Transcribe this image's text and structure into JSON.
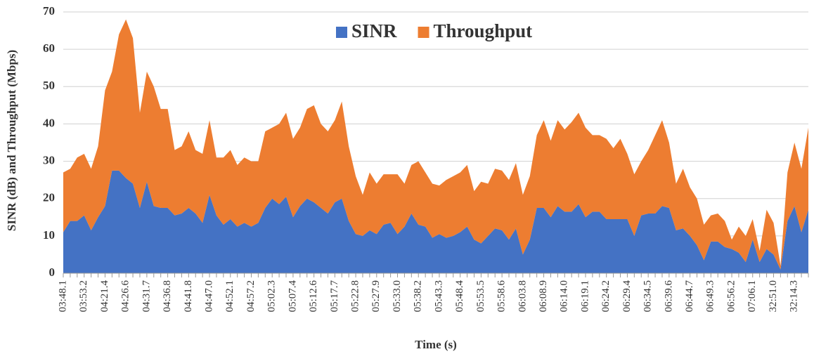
{
  "chart_data": {
    "type": "stacked_area",
    "xlabel": "Time (s)",
    "ylabel": "SINR (dB) and Throughput (Mbps)",
    "categories": [
      "03:48.1",
      null,
      null,
      "03:53.2",
      null,
      null,
      "04:21.4",
      null,
      null,
      "04:26.6",
      null,
      null,
      "04:31.7",
      null,
      null,
      "04:36.8",
      null,
      null,
      "04:41.8",
      null,
      null,
      "04:47.0",
      null,
      null,
      "04:52.1",
      null,
      null,
      "04:57.2",
      null,
      null,
      "05:02.3",
      null,
      null,
      "05:07.4",
      null,
      null,
      "05:12.6",
      null,
      null,
      "05:17.7",
      null,
      null,
      "05:22.8",
      null,
      null,
      "05:27.9",
      null,
      null,
      "05:33.0",
      null,
      null,
      "05:38.2",
      null,
      null,
      "05:43.3",
      null,
      null,
      "05:48.4",
      null,
      null,
      "05:53.5",
      null,
      null,
      "05:58.6",
      null,
      null,
      "06:03.8",
      null,
      null,
      "06:08.9",
      null,
      null,
      "06:14.0",
      null,
      null,
      "06:19.1",
      null,
      null,
      "06:24.2",
      null,
      null,
      "06:29.4",
      null,
      null,
      "06:34.5",
      null,
      null,
      "06:39.6",
      null,
      null,
      "06:44.7",
      null,
      null,
      "06:49.3",
      null,
      null,
      "06:56.2",
      null,
      null,
      "07:06.1",
      null,
      null,
      "32:51.0",
      null,
      null,
      "32:14.3",
      null,
      null
    ],
    "series": [
      {
        "name": "SINR",
        "color": "#4472c4",
        "values": [
          11,
          14,
          14,
          15.5,
          11.5,
          15,
          18,
          27.5,
          27.5,
          25.5,
          24,
          17.5,
          24.5,
          18,
          17.5,
          17.5,
          15.5,
          16,
          17.5,
          16,
          13.5,
          21,
          15.5,
          13,
          14.5,
          12.5,
          13.5,
          12.5,
          13.5,
          17.5,
          20,
          18.5,
          20.5,
          15,
          18,
          20,
          19,
          17.5,
          16,
          19,
          20,
          14,
          10.5,
          10,
          11.5,
          10.5,
          13,
          13.5,
          10.5,
          12.5,
          16,
          13,
          12.5,
          9.5,
          10.5,
          9.5,
          10,
          11,
          12.5,
          9,
          8,
          10,
          12,
          11.5,
          9,
          12,
          5,
          9,
          17.5,
          17.5,
          15,
          18,
          16.5,
          16.5,
          18.5,
          15,
          16.5,
          16.5,
          14.5,
          14.5,
          14.5,
          14.5,
          10,
          15.5,
          16,
          16,
          18,
          17.5,
          11.5,
          12,
          10,
          7.5,
          3.5,
          8.5,
          8.5,
          7,
          6.5,
          5.5,
          3,
          9,
          3,
          6.5,
          5,
          1,
          14,
          18,
          11,
          17
        ]
      },
      {
        "name": "Throughput",
        "color": "#ed7d31",
        "values": [
          16,
          14,
          17,
          16.5,
          16.5,
          19,
          31,
          26.5,
          36.5,
          42.5,
          39,
          25.5,
          29.5,
          32,
          26.5,
          26.5,
          17.5,
          18,
          20.5,
          17,
          18.5,
          20,
          15.5,
          18,
          18.5,
          16.5,
          17.5,
          17.5,
          16.5,
          20.5,
          19,
          21.5,
          22.5,
          21,
          21,
          24,
          26,
          22.5,
          22,
          22,
          26,
          20,
          15.5,
          11,
          15.5,
          13.5,
          13.5,
          13,
          16,
          11.5,
          13,
          17,
          14.5,
          14.5,
          13,
          15.5,
          16,
          16,
          16.5,
          13,
          16.5,
          14,
          16,
          16,
          16,
          17.5,
          16,
          17,
          19.5,
          23.5,
          20.5,
          23,
          22,
          24,
          24.5,
          24,
          20.5,
          20.5,
          21.5,
          19,
          21.5,
          17.5,
          16.5,
          14.5,
          17,
          21,
          23,
          17.5,
          12.5,
          16,
          13,
          12.5,
          9.5,
          7,
          7.5,
          7,
          2.5,
          7,
          7,
          5.5,
          3,
          10.5,
          8.5,
          1,
          13,
          17,
          17,
          22
        ]
      }
    ],
    "ylim": [
      0,
      70
    ],
    "yticks": [
      0,
      10,
      20,
      30,
      40,
      50,
      60,
      70
    ],
    "grid": true,
    "legend": "top"
  }
}
